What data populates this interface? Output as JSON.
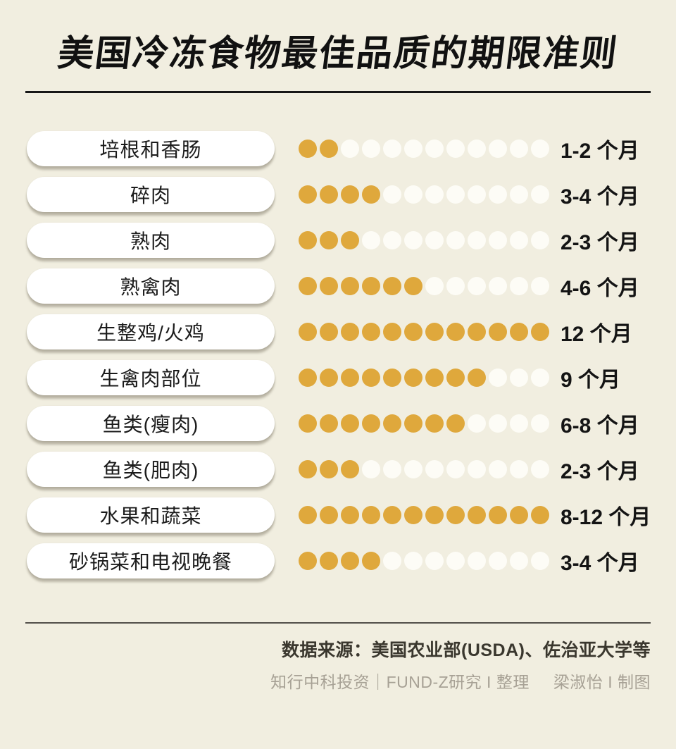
{
  "title": "美国冷冻食物最佳品质的期限准则",
  "colors": {
    "background": "#f1eee0",
    "filled_dot_gold": "#dfa83c",
    "empty_dot_white": "#fdfcf6",
    "title_black": "#111111",
    "credits_gray": "#a7a195"
  },
  "chart_data": {
    "type": "bar",
    "style": "unit-dot-pictograph",
    "title": "美国冷冻食物最佳品质的期限准则",
    "unit": "个月",
    "max_units_per_row": 12,
    "xlim": [
      0,
      12
    ],
    "grid": false,
    "legend": "none",
    "categories": [
      "培根和香肠",
      "碎肉",
      "熟肉",
      "熟禽肉",
      "生整鸡/火鸡",
      "生禽肉部位",
      "鱼类(瘦肉)",
      "鱼类(肥肉)",
      "水果和蔬菜",
      "砂锅菜和电视晚餐"
    ],
    "values": [
      2,
      4,
      3,
      6,
      12,
      9,
      8,
      3,
      12,
      4
    ],
    "value_labels": [
      "1-2 个月",
      "3-4 个月",
      "2-3 个月",
      "4-6 个月",
      "12 个月",
      "9 个月",
      "6-8 个月",
      "2-3 个月",
      "8-12 个月",
      "3-4 个月"
    ]
  },
  "footer": {
    "source": "数据来源：美国农业部(USDA)、佐治亚大学等",
    "credits_left": "知行中科投资｜FUND-Z研究 I 整理",
    "credits_right": "梁淑怡 I 制图"
  }
}
